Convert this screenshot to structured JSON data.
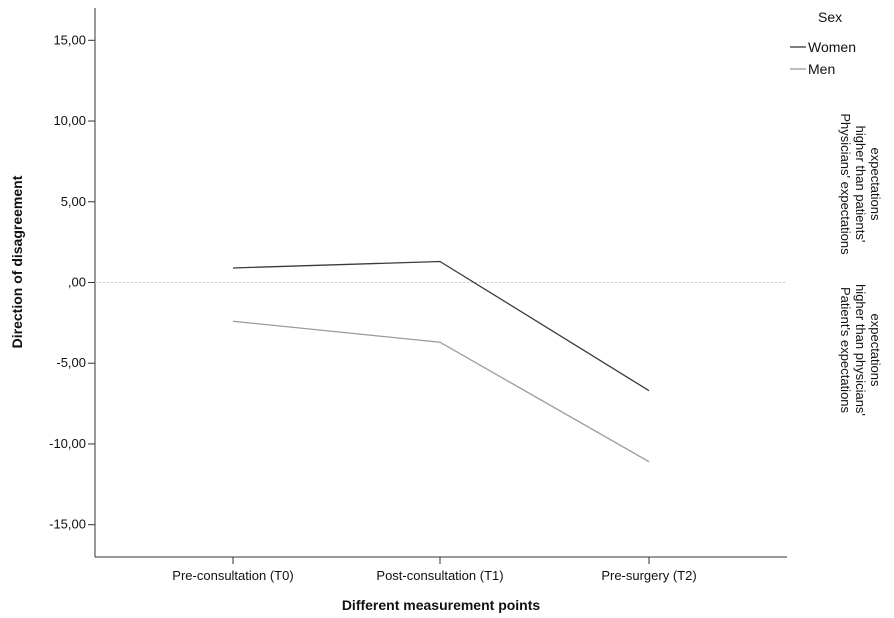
{
  "chart_data": {
    "type": "line",
    "xlabel": "Different measurement points",
    "ylabel": "Direction of disagreement",
    "categories": [
      "Pre-consultation (T0)",
      "Post-consultation (T1)",
      "Pre-surgery (T2)"
    ],
    "ylim": [
      -17.0,
      17.0
    ],
    "yticks": [
      15,
      10,
      5,
      0,
      -5,
      -10,
      -15
    ],
    "ytick_labels": [
      "15,00",
      "10,00",
      "5,00",
      ",00",
      "-5,00",
      "-10,00",
      "-15,00"
    ],
    "reference_line": 0,
    "grid": false,
    "legend": {
      "title": "Sex",
      "position": "top-right"
    },
    "series": [
      {
        "name": "Women",
        "color": "#3a3a3a",
        "values": [
          0.9,
          1.3,
          -6.7
        ]
      },
      {
        "name": "Men",
        "color": "#9a9a9a",
        "values": [
          -2.4,
          -3.7,
          -11.1
        ]
      }
    ],
    "annotations": [
      {
        "lines": [
          "Physicians' expectations",
          "higher than patients'",
          "expectations"
        ]
      },
      {
        "lines": [
          "Patient's expectations",
          "higher than physicians'",
          "expectations"
        ]
      }
    ]
  }
}
